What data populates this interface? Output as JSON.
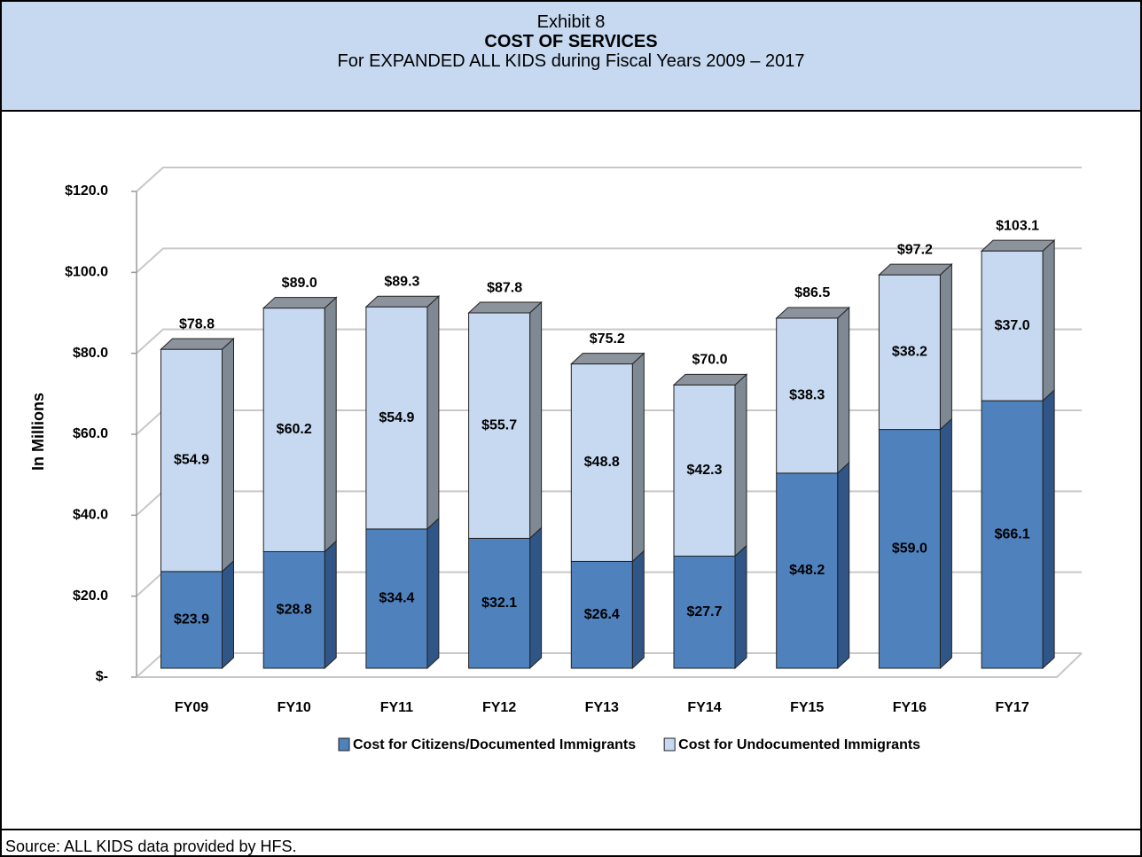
{
  "header": {
    "exhibit": "Exhibit 8",
    "title": "COST OF SERVICES",
    "subtitle": "For EXPANDED ALL KIDS during Fiscal Years 2009 – 2017"
  },
  "chart_data": {
    "type": "stacked_bar_3d",
    "ylabel": "In Millions",
    "categories": [
      "FY09",
      "FY10",
      "FY11",
      "FY12",
      "FY13",
      "FY14",
      "FY15",
      "FY16",
      "FY17"
    ],
    "series": [
      {
        "name": "Cost for Citizens/Documented Immigrants",
        "color": "#4f81bd",
        "values": [
          23.9,
          28.8,
          34.4,
          32.1,
          26.4,
          27.7,
          48.2,
          59.0,
          66.1
        ],
        "value_labels": [
          "$23.9",
          "$28.8",
          "$34.4",
          "$32.1",
          "$26.4",
          "$27.7",
          "$48.2",
          "$59.0",
          "$66.1"
        ]
      },
      {
        "name": "Cost for Undocumented Immigrants",
        "color": "#c6d9f1",
        "values": [
          54.9,
          60.2,
          54.9,
          55.7,
          48.8,
          42.3,
          38.3,
          38.2,
          37.0
        ],
        "value_labels": [
          "$54.9",
          "$60.2",
          "$54.9",
          "$55.7",
          "$48.8",
          "$42.3",
          "$38.3",
          "$38.2",
          "$37.0"
        ]
      }
    ],
    "totals": [
      78.8,
      89.0,
      89.3,
      87.8,
      75.2,
      70.0,
      86.5,
      97.2,
      103.1
    ],
    "total_labels": [
      "$78.8",
      "$89.0",
      "$89.3",
      "$87.8",
      "$75.2",
      "$70.0",
      "$86.5",
      "$97.2",
      "$103.1"
    ],
    "ylim": [
      0,
      120
    ],
    "yticks": [
      {
        "value": 0,
        "label": "$-"
      },
      {
        "value": 20,
        "label": "$20.0"
      },
      {
        "value": 40,
        "label": "$40.0"
      },
      {
        "value": 60,
        "label": "$60.0"
      },
      {
        "value": 80,
        "label": "$80.0"
      },
      {
        "value": 100,
        "label": "$100.0"
      },
      {
        "value": 120,
        "label": "$120.0"
      }
    ],
    "grid": true,
    "legend": "bottom"
  },
  "footer": {
    "source": "Source:  ALL KIDS data provided by HFS."
  }
}
